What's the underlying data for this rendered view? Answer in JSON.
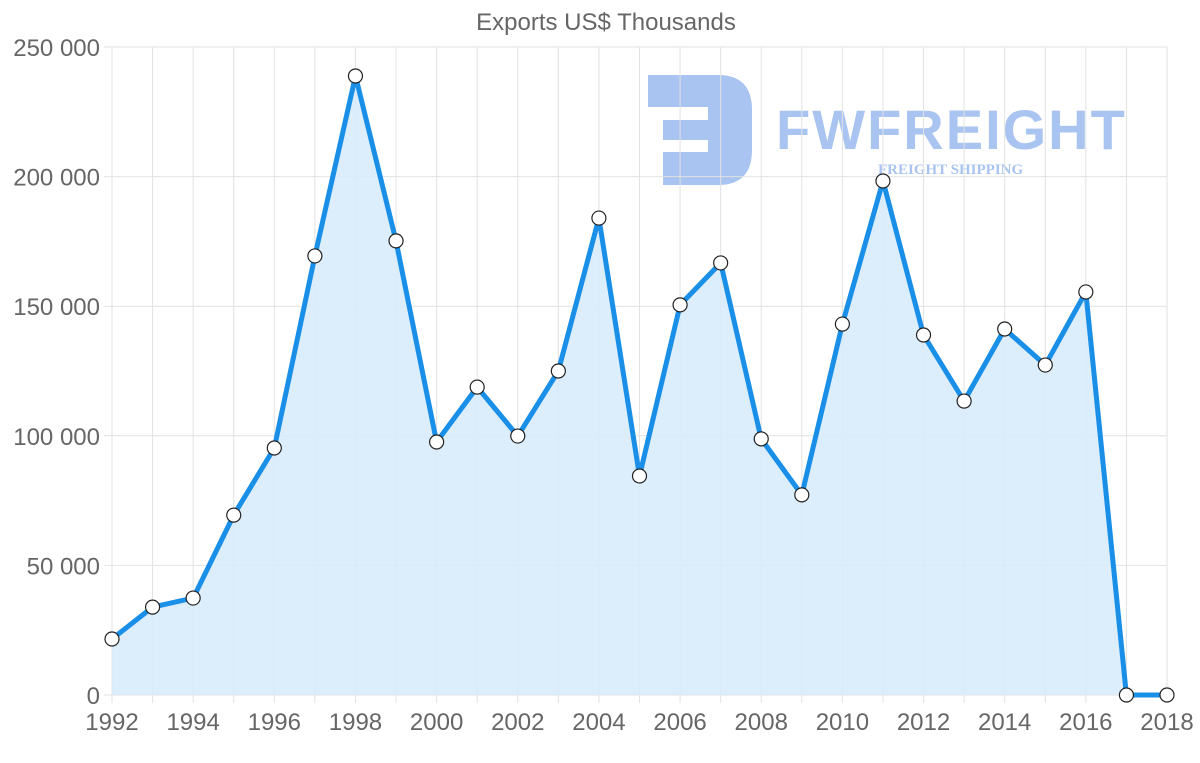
{
  "chart_data": {
    "type": "area",
    "title": "Exports US$ Thousands",
    "xlabel": "",
    "ylabel": "",
    "x": [
      1992,
      1993,
      1994,
      1995,
      1996,
      1997,
      1998,
      1999,
      2000,
      2001,
      2002,
      2003,
      2004,
      2005,
      2006,
      2007,
      2008,
      2009,
      2010,
      2011,
      2012,
      2013,
      2014,
      2015,
      2016,
      2017,
      2018
    ],
    "series": [
      {
        "name": "Exports US$ Thousands",
        "values": [
          21600,
          33900,
          37400,
          69400,
          95300,
          169400,
          238800,
          175200,
          97600,
          118800,
          99900,
          125000,
          184000,
          84500,
          150500,
          166700,
          98800,
          77200,
          143100,
          198300,
          138900,
          113400,
          141200,
          127300,
          155500,
          0,
          0
        ]
      }
    ],
    "ylim": [
      0,
      250000
    ],
    "xlim": [
      1992,
      2018
    ],
    "y_ticks": [
      "0",
      "50 000",
      "100 000",
      "150 000",
      "200 000",
      "250 000"
    ],
    "x_ticks": [
      "1992",
      "1994",
      "1996",
      "1998",
      "2000",
      "2002",
      "2004",
      "2006",
      "2008",
      "2010",
      "2012",
      "2014",
      "2016",
      "2018"
    ],
    "grid": true,
    "legend": "none",
    "colors": {
      "line": "#1a8fe8",
      "fill": "#d8ebfb",
      "point_fill": "#ffffff",
      "point_stroke": "#222222"
    }
  },
  "watermark": {
    "brand": "FWFREIGHT",
    "tagline": "FREIGHT SHIPPING",
    "color": "#a9c4f0"
  }
}
